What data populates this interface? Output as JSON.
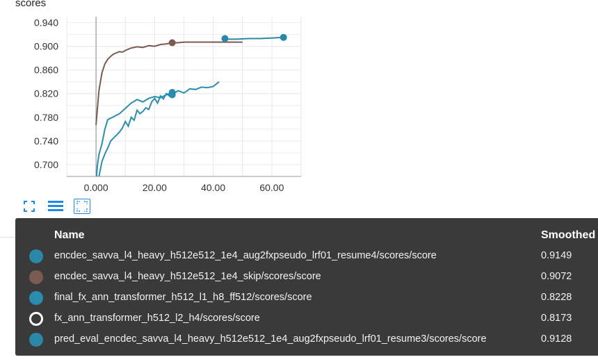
{
  "card": {
    "title": "scores"
  },
  "toolbar": {
    "buttons": [
      {
        "name": "fullscreen-icon",
        "label": "fullscreen"
      },
      {
        "name": "data-selection-icon",
        "label": "toggle y-axis log scale"
      },
      {
        "name": "fit-domain-icon",
        "label": "fit domain to data",
        "active": true
      }
    ]
  },
  "tooltip": {
    "name_header": "Name",
    "smoothed_header": "Smoothed",
    "rows": [
      {
        "name": "encdec_savva_l4_heavy_h512e512_1e4_aug2fxpseudo_lrf01_resume4/scores/score",
        "smoothed": "0.9149",
        "color": "#2b87a6",
        "marker": "filled"
      },
      {
        "name": "encdec_savva_l4_heavy_h512e512_1e4_skip/scores/score",
        "smoothed": "0.9072",
        "color": "#7b5a52",
        "marker": "filled"
      },
      {
        "name": "final_fx_ann_transformer_h512_l1_h8_ff512/scores/score",
        "smoothed": "0.8228",
        "color": "#2a8db0",
        "marker": "filled"
      },
      {
        "name": "fx_ann_transformer_h512_l2_h4/scores/score",
        "smoothed": "0.8173",
        "color": "#ffffff",
        "marker": "ring"
      },
      {
        "name": "pred_eval_encdec_savva_l4_heavy_h512e512_1e4_aug2fxpseudo_lrf01_resume3/scores/score",
        "smoothed": "0.9128",
        "color": "#2b87a6",
        "marker": "filled"
      }
    ]
  },
  "chart_data": {
    "type": "line",
    "title": "scores",
    "xlabel": "",
    "ylabel": "",
    "xlim": [
      -10,
      70
    ],
    "ylim": [
      0.68,
      0.95
    ],
    "x_ticks": [
      "0.000",
      "20.00",
      "40.00",
      "60.00"
    ],
    "x_tick_values": [
      0,
      20,
      40,
      60
    ],
    "y_ticks": [
      "0.700",
      "0.740",
      "0.780",
      "0.820",
      "0.860",
      "0.900",
      "0.940"
    ],
    "y_tick_values": [
      0.7,
      0.74,
      0.78,
      0.82,
      0.86,
      0.9,
      0.94
    ],
    "grid": true,
    "series": [
      {
        "name": "encdec_savva_l4_heavy_h512e512_1e4_skip/scores/score",
        "color": "#7b5a52",
        "x": [
          0,
          1,
          2,
          3,
          4,
          5,
          6,
          7,
          8,
          9,
          10,
          12,
          14,
          16,
          18,
          20,
          22,
          24,
          26,
          28,
          30,
          34,
          38,
          42,
          46,
          50
        ],
        "y": [
          0.767,
          0.825,
          0.855,
          0.87,
          0.878,
          0.883,
          0.887,
          0.889,
          0.891,
          0.89,
          0.893,
          0.897,
          0.899,
          0.898,
          0.901,
          0.9,
          0.903,
          0.904,
          0.906,
          0.906,
          0.907,
          0.907,
          0.907,
          0.907,
          0.907,
          0.907
        ],
        "marker": {
          "x": 26,
          "y": 0.906
        }
      },
      {
        "name": "final_fx_ann_transformer_h512_l1_h8_ff512/scores/score",
        "color": "#2a8db0",
        "x": [
          0,
          0.5,
          1,
          2,
          3,
          4,
          6,
          8,
          10,
          12,
          14,
          16,
          18,
          20,
          22,
          24,
          26
        ],
        "y": [
          0.672,
          0.7,
          0.717,
          0.735,
          0.76,
          0.776,
          0.781,
          0.786,
          0.795,
          0.804,
          0.81,
          0.806,
          0.812,
          0.815,
          0.813,
          0.818,
          0.822
        ],
        "marker": {
          "x": 26,
          "y": 0.822
        }
      },
      {
        "name": "fx_ann_transformer_h512_l2_h4/scores/score",
        "color": "#2a8db0",
        "x": [
          1,
          2,
          3,
          4,
          5,
          6,
          7,
          8,
          9,
          10,
          11,
          12,
          13,
          14,
          15,
          16,
          17,
          18,
          19,
          20,
          21,
          22,
          23,
          24,
          25,
          26,
          28,
          30,
          32,
          34,
          36,
          38,
          40,
          42
        ],
        "y": [
          0.68,
          0.705,
          0.718,
          0.728,
          0.74,
          0.745,
          0.75,
          0.755,
          0.762,
          0.773,
          0.765,
          0.78,
          0.775,
          0.792,
          0.786,
          0.79,
          0.796,
          0.793,
          0.806,
          0.812,
          0.804,
          0.816,
          0.811,
          0.82,
          0.816,
          0.818,
          0.825,
          0.821,
          0.828,
          0.827,
          0.831,
          0.83,
          0.832,
          0.84
        ],
        "marker": {
          "x": 26,
          "y": 0.818
        }
      },
      {
        "name": "encdec_savva_l4_heavy_h512e512_1e4_aug2fxpseudo_lrf01_resume4/scores/score",
        "color": "#2b87a6",
        "x": [
          44,
          48,
          52,
          56,
          60,
          64
        ],
        "y": [
          0.912,
          0.912,
          0.913,
          0.913,
          0.914,
          0.915
        ],
        "marker": {
          "x": 64,
          "y": 0.915
        }
      },
      {
        "name": "pred_eval_encdec_savva_l4_heavy_h512e512_1e4_aug2fxpseudo_lrf01_resume3/scores/score",
        "color": "#2b87a6",
        "x": [
          44
        ],
        "y": [
          0.913
        ],
        "marker": {
          "x": 44,
          "y": 0.913
        }
      }
    ]
  }
}
